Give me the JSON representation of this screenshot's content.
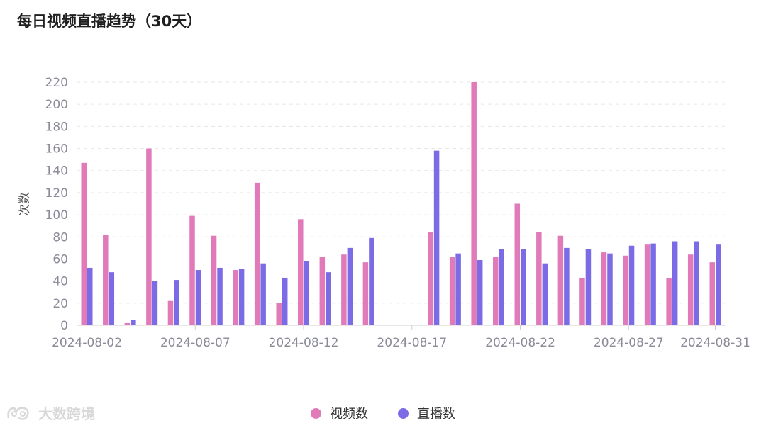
{
  "page": {
    "title": "每日视频直播趋势（30天）",
    "watermark": "大数跨境"
  },
  "colors": {
    "video": "#e07ab8",
    "live": "#7b6ce6",
    "grid": "#e6e6e6",
    "axis": "#cfcfcf",
    "tick_text": "#8a8a99"
  },
  "chart_data": {
    "type": "bar",
    "title": "每日视频直播趋势（30天）",
    "ylabel": "次数",
    "xlabel": "",
    "ylim": [
      0,
      220
    ],
    "yticks": [
      0,
      20,
      40,
      60,
      80,
      100,
      120,
      140,
      160,
      180,
      200,
      220
    ],
    "grid": true,
    "legend_position": "bottom",
    "categories": [
      "2024-08-02",
      "2024-08-03",
      "2024-08-04",
      "2024-08-05",
      "2024-08-06",
      "2024-08-07",
      "2024-08-08",
      "2024-08-09",
      "2024-08-10",
      "2024-08-11",
      "2024-08-12",
      "2024-08-13",
      "2024-08-14",
      "2024-08-15",
      "2024-08-16",
      "2024-08-17",
      "2024-08-18",
      "2024-08-19",
      "2024-08-20",
      "2024-08-21",
      "2024-08-22",
      "2024-08-23",
      "2024-08-24",
      "2024-08-25",
      "2024-08-26",
      "2024-08-27",
      "2024-08-28",
      "2024-08-29",
      "2024-08-30",
      "2024-08-31"
    ],
    "xtick_labels": [
      "2024-08-02",
      "2024-08-07",
      "2024-08-12",
      "2024-08-17",
      "2024-08-22",
      "2024-08-27",
      "2024-08-31"
    ],
    "series": [
      {
        "name": "视频数",
        "color": "#e07ab8",
        "values": [
          147,
          82,
          2,
          160,
          22,
          99,
          81,
          50,
          129,
          20,
          96,
          62,
          64,
          57,
          0,
          0,
          84,
          62,
          220,
          62,
          110,
          84,
          81,
          43,
          66,
          63,
          73,
          43,
          64,
          57
        ]
      },
      {
        "name": "直播数",
        "color": "#7b6ce6",
        "values": [
          52,
          48,
          5,
          40,
          41,
          50,
          52,
          51,
          56,
          43,
          58,
          48,
          70,
          79,
          0,
          0,
          158,
          65,
          59,
          69,
          69,
          56,
          70,
          69,
          65,
          72,
          74,
          76,
          76,
          73
        ]
      }
    ]
  }
}
